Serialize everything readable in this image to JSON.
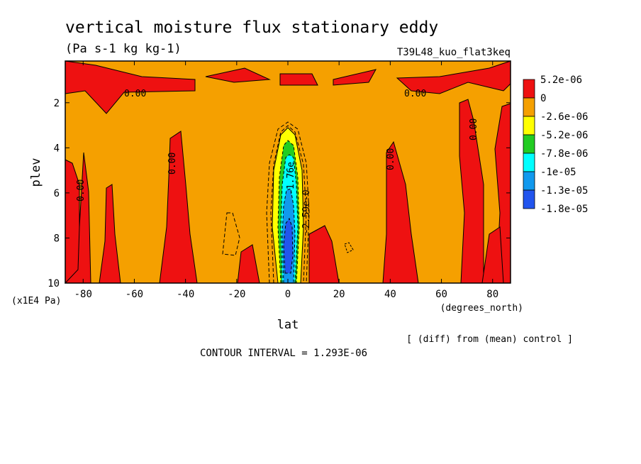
{
  "chart_data": {
    "type": "heatmap",
    "title": "vertical moisture flux stationary eddy",
    "units": "(Pa s-1 kg kg-1)",
    "run_label": "T39L48_kuo_flat3keq",
    "xlabel": "lat",
    "x_units": "(degrees_north)",
    "ylabel": "plev",
    "y_units": "(x1E4 Pa)",
    "xlim": [
      -87,
      87
    ],
    "ylim": [
      10,
      0.15
    ],
    "x_ticks": [
      "-80",
      "-60",
      "-40",
      "-20",
      "0",
      "20",
      "40",
      "60",
      "80"
    ],
    "x_tick_values": [
      -80,
      -60,
      -40,
      -20,
      0,
      20,
      40,
      60,
      80
    ],
    "y_ticks": [
      "2",
      "4",
      "6",
      "8",
      "10"
    ],
    "y_tick_values": [
      2,
      4,
      6,
      8,
      10
    ],
    "colorbar": {
      "labels": [
        "5.2e-06",
        "0",
        "-2.6e-06",
        "-5.2e-06",
        "-7.8e-06",
        "-1e-05",
        "-1.3e-05",
        "-1.8e-05"
      ],
      "colors": [
        "#ee1111",
        "#f5a000",
        "#ffff00",
        "#22cc22",
        "#00ffff",
        "#1199ee",
        "#2255ee"
      ]
    },
    "contour_labels": [
      "0.00",
      "0.00",
      "0.00",
      "0.00",
      "0.00",
      "0.00",
      "-1.76e",
      "-2.59e-0"
    ],
    "note": "[ (diff) from (mean) control ]",
    "contour_interval_text": "CONTOUR INTERVAL = 1.293E-06"
  }
}
